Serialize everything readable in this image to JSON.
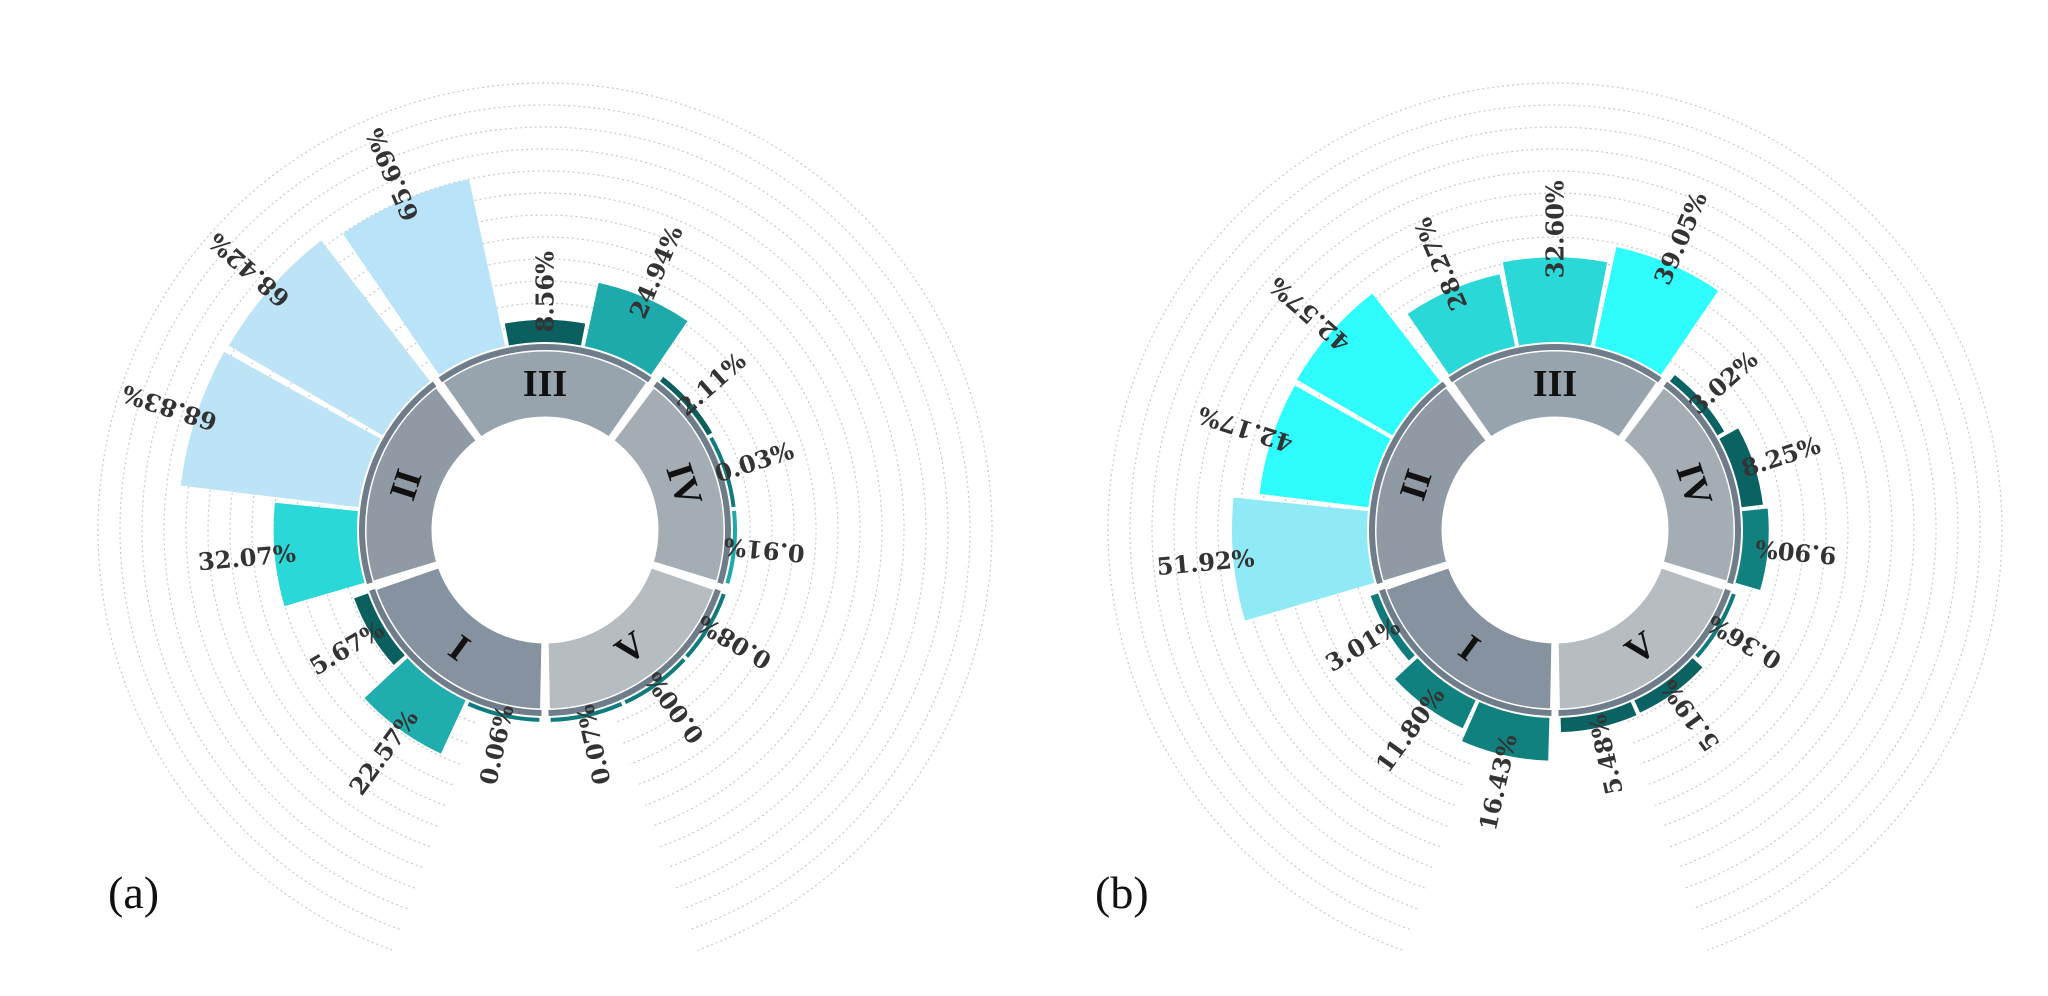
{
  "chart_data": [
    {
      "panel_label": "(a)",
      "type": "radial-bar",
      "sectors": [
        {
          "label": "I",
          "color": "#8692a0",
          "bars": [
            {
              "value": 0.06,
              "label": "0.06%",
              "color": "#0f7b7c"
            },
            {
              "value": 22.57,
              "label": "22.57%",
              "color": "#20adae"
            },
            {
              "value": 5.67,
              "label": "5.67%",
              "color": "#0b5f5f"
            }
          ]
        },
        {
          "label": "II",
          "color": "#8f9aa5",
          "bars": [
            {
              "value": 32.07,
              "label": "32.07%",
              "color": "#2bd8d8"
            },
            {
              "value": 68.83,
              "label": "68.83%",
              "color": "#bde3f6"
            },
            {
              "value": 68.42,
              "label": "68.42%",
              "color": "#bde3f6"
            }
          ]
        },
        {
          "label": "III",
          "color": "#97a4ad",
          "bars": [
            {
              "value": 65.69,
              "label": "65.69%",
              "color": "#b8e3f8"
            },
            {
              "value": 8.56,
              "label": "8.56%",
              "color": "#0b5f5f"
            },
            {
              "value": 24.94,
              "label": "24.94%",
              "color": "#1ea9aa"
            }
          ]
        },
        {
          "label": "IV",
          "color": "#a4adb4",
          "bars": [
            {
              "value": 2.11,
              "label": "2.11%",
              "color": "#0b5f5f"
            },
            {
              "value": 0.03,
              "label": "0.03%",
              "color": "#0f7b7c"
            },
            {
              "value": 0.91,
              "label": "0.91%",
              "color": "#1ea9aa"
            }
          ]
        },
        {
          "label": "V",
          "color": "#b6bcbf",
          "bars": [
            {
              "value": 0.08,
              "label": "0.08%",
              "color": "#0f7b7c"
            },
            {
              "value": 0.0,
              "label": "0.00%",
              "color": "#0f7b7c"
            },
            {
              "value": 0.07,
              "label": "0.07%",
              "color": "#0f7b7c"
            }
          ]
        }
      ]
    },
    {
      "panel_label": "(b)",
      "type": "radial-bar",
      "sectors": [
        {
          "label": "I",
          "color": "#8692a0",
          "bars": [
            {
              "value": 16.43,
              "label": "16.43%",
              "color": "#11817f"
            },
            {
              "value": 11.8,
              "label": "11.80%",
              "color": "#11817f"
            },
            {
              "value": 3.01,
              "label": "3.01%",
              "color": "#0f7b7c"
            }
          ]
        },
        {
          "label": "II",
          "color": "#8f9aa5",
          "bars": [
            {
              "value": 51.92,
              "label": "51.92%",
              "color": "#8feaf6"
            },
            {
              "value": 42.17,
              "label": "42.17%",
              "color": "#2ffcfc"
            },
            {
              "value": 42.57,
              "label": "42.57%",
              "color": "#2ffcfc"
            }
          ]
        },
        {
          "label": "III",
          "color": "#97a4ad",
          "bars": [
            {
              "value": 28.27,
              "label": "28.27%",
              "color": "#2bd8d8"
            },
            {
              "value": 32.6,
              "label": "32.60%",
              "color": "#2bd8d8"
            },
            {
              "value": 39.05,
              "label": "39.05%",
              "color": "#2ffcfc"
            }
          ]
        },
        {
          "label": "IV",
          "color": "#a4adb4",
          "bars": [
            {
              "value": 3.02,
              "label": "3.02%",
              "color": "#0b6262"
            },
            {
              "value": 8.25,
              "label": "8.25%",
              "color": "#0b6262"
            },
            {
              "value": 9.9,
              "label": "9.90%",
              "color": "#11817f"
            }
          ]
        },
        {
          "label": "V",
          "color": "#b6bcbf",
          "bars": [
            {
              "value": 0.36,
              "label": "0.36%",
              "color": "#0f7b7c"
            },
            {
              "value": 5.19,
              "label": "5.19%",
              "color": "#0b6262"
            },
            {
              "value": 5.48,
              "label": "5.48%",
              "color": "#0b6262"
            }
          ]
        }
      ]
    }
  ]
}
